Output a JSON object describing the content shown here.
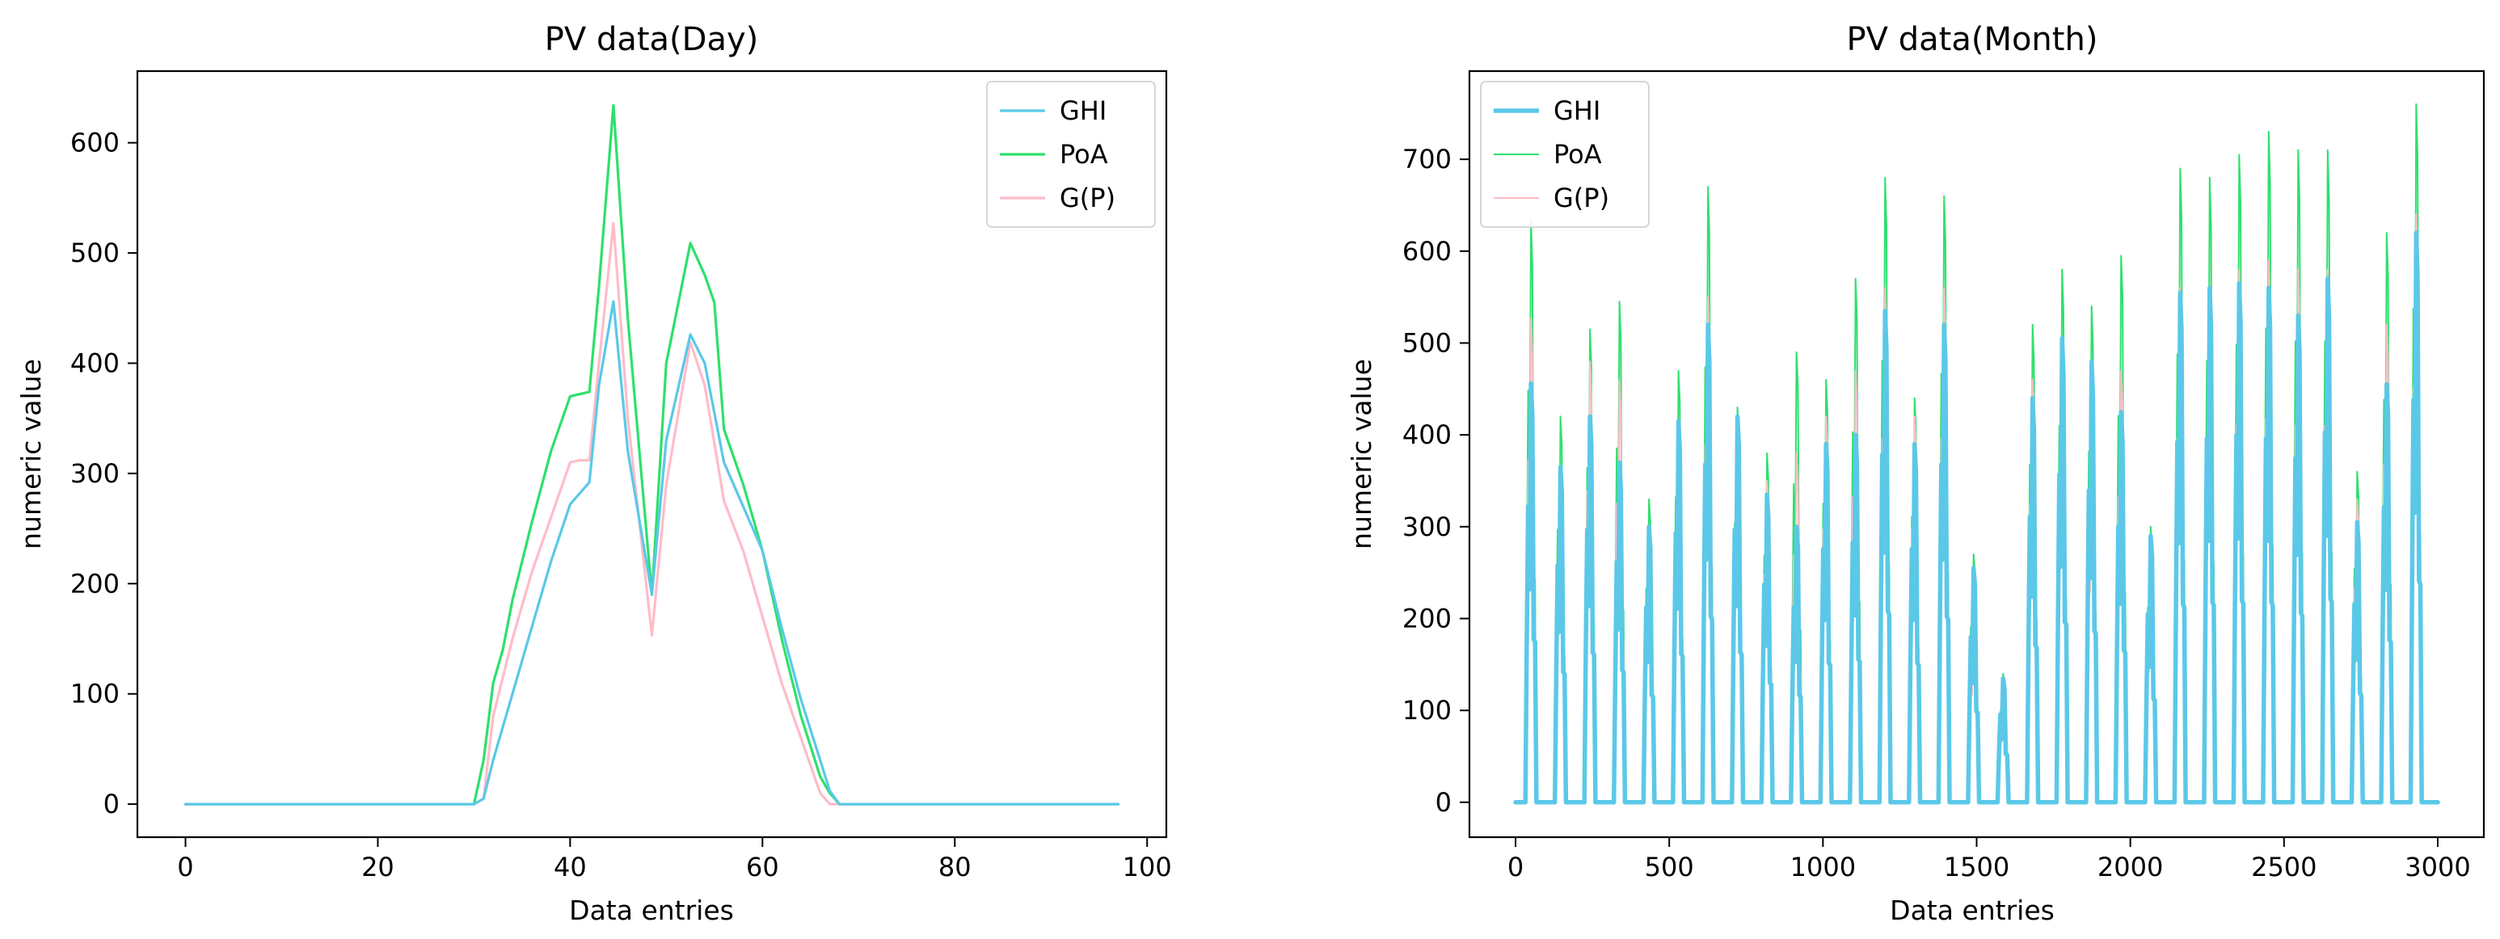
{
  "colors": {
    "GHI": "#5bc8e8",
    "PoA": "#2ee06c",
    "G(P)": "#ffbcc8",
    "overlap": "#2ed8c8"
  },
  "chart_data": [
    {
      "type": "line",
      "title": "PV data(Day)",
      "xlabel": "Data entries",
      "ylabel": "numeric value",
      "xlim": [
        -5,
        102
      ],
      "ylim": [
        -30,
        665
      ],
      "xticks": [
        0,
        20,
        40,
        60,
        80,
        100
      ],
      "yticks": [
        0,
        100,
        200,
        300,
        400,
        500,
        600
      ],
      "legend": "top-right",
      "grid": false,
      "series": [
        {
          "name": "GHI",
          "color": "#5bc8e8",
          "x": [
            0,
            30,
            31,
            32,
            34,
            36,
            38,
            40,
            42,
            43,
            44.5,
            46,
            48.5,
            50,
            52.5,
            54,
            56,
            58,
            60,
            62,
            64,
            66,
            67,
            68,
            69,
            97
          ],
          "y": [
            0,
            0,
            5,
            40,
            100,
            160,
            220,
            272,
            292,
            380,
            456,
            320,
            190,
            330,
            426,
            400,
            310,
            270,
            230,
            160,
            95,
            40,
            12,
            0,
            0,
            0
          ]
        },
        {
          "name": "PoA",
          "color": "#2ee06c",
          "x": [
            0,
            30,
            31,
            32,
            33,
            34,
            36,
            38,
            40,
            42,
            43,
            44.5,
            46,
            48.5,
            50,
            52.5,
            54,
            55,
            56,
            58,
            60,
            62,
            64,
            66,
            67,
            68,
            69,
            97
          ],
          "y": [
            0,
            0,
            40,
            110,
            140,
            185,
            255,
            320,
            370,
            374,
            470,
            634,
            440,
            190,
            400,
            509,
            480,
            455,
            340,
            290,
            230,
            150,
            80,
            25,
            10,
            0,
            0,
            0
          ]
        },
        {
          "name": "G(P)",
          "color": "#ffbcc8",
          "x": [
            0,
            30,
            31,
            32,
            34,
            36,
            38,
            40,
            41,
            42,
            43,
            44.5,
            46,
            48.5,
            50,
            52.5,
            54,
            56,
            58,
            60,
            62,
            64,
            66,
            67,
            68,
            97
          ],
          "y": [
            0,
            0,
            5,
            80,
            150,
            210,
            260,
            310,
            312,
            312,
            400,
            527,
            350,
            153,
            290,
            419,
            380,
            275,
            230,
            170,
            110,
            60,
            10,
            0,
            0,
            0
          ]
        }
      ]
    },
    {
      "type": "line",
      "title": "PV data(Month)",
      "xlabel": "Data entries",
      "ylabel": "numeric value",
      "xlim": [
        -150,
        3150
      ],
      "ylim": [
        -38,
        796
      ],
      "xticks": [
        0,
        500,
        1000,
        1500,
        2000,
        2500,
        3000
      ],
      "yticks": [
        0,
        100,
        200,
        300,
        400,
        500,
        600,
        700
      ],
      "legend": "top-left",
      "grid": false,
      "series": [
        {
          "name": "GHI",
          "color": "#5bc8e8"
        },
        {
          "name": "PoA",
          "color": "#2ee06c"
        },
        {
          "name": "G(P)",
          "color": "#ffbcc8"
        }
      ],
      "days": {
        "length": 96,
        "start": [
          32,
          128,
          224,
          320,
          416,
          512,
          608,
          704,
          800,
          896,
          992,
          1088,
          1184,
          1280,
          1376,
          1472,
          1568,
          1664,
          1760,
          1856,
          1952,
          2048,
          2144,
          2240,
          2336,
          2432,
          2528,
          2624,
          2720,
          2816,
          2912
        ],
        "GHI": [
          456,
          365,
          420,
          370,
          300,
          415,
          520,
          420,
          335,
          300,
          390,
          400,
          535,
          390,
          520,
          255,
          135,
          440,
          505,
          480,
          425,
          290,
          555,
          560,
          565,
          560,
          530,
          570,
          305,
          455,
          620
        ],
        "PoA": [
          634,
          420,
          515,
          545,
          330,
          470,
          670,
          430,
          380,
          490,
          460,
          570,
          680,
          440,
          660,
          270,
          140,
          520,
          580,
          540,
          595,
          300,
          690,
          680,
          705,
          730,
          710,
          710,
          360,
          620,
          760
        ],
        "G(P)": [
          527,
          360,
          480,
          460,
          300,
          410,
          550,
          420,
          350,
          380,
          420,
          470,
          560,
          420,
          560,
          230,
          130,
          460,
          500,
          450,
          470,
          280,
          560,
          560,
          580,
          590,
          580,
          580,
          330,
          520,
          640
        ]
      }
    }
  ]
}
